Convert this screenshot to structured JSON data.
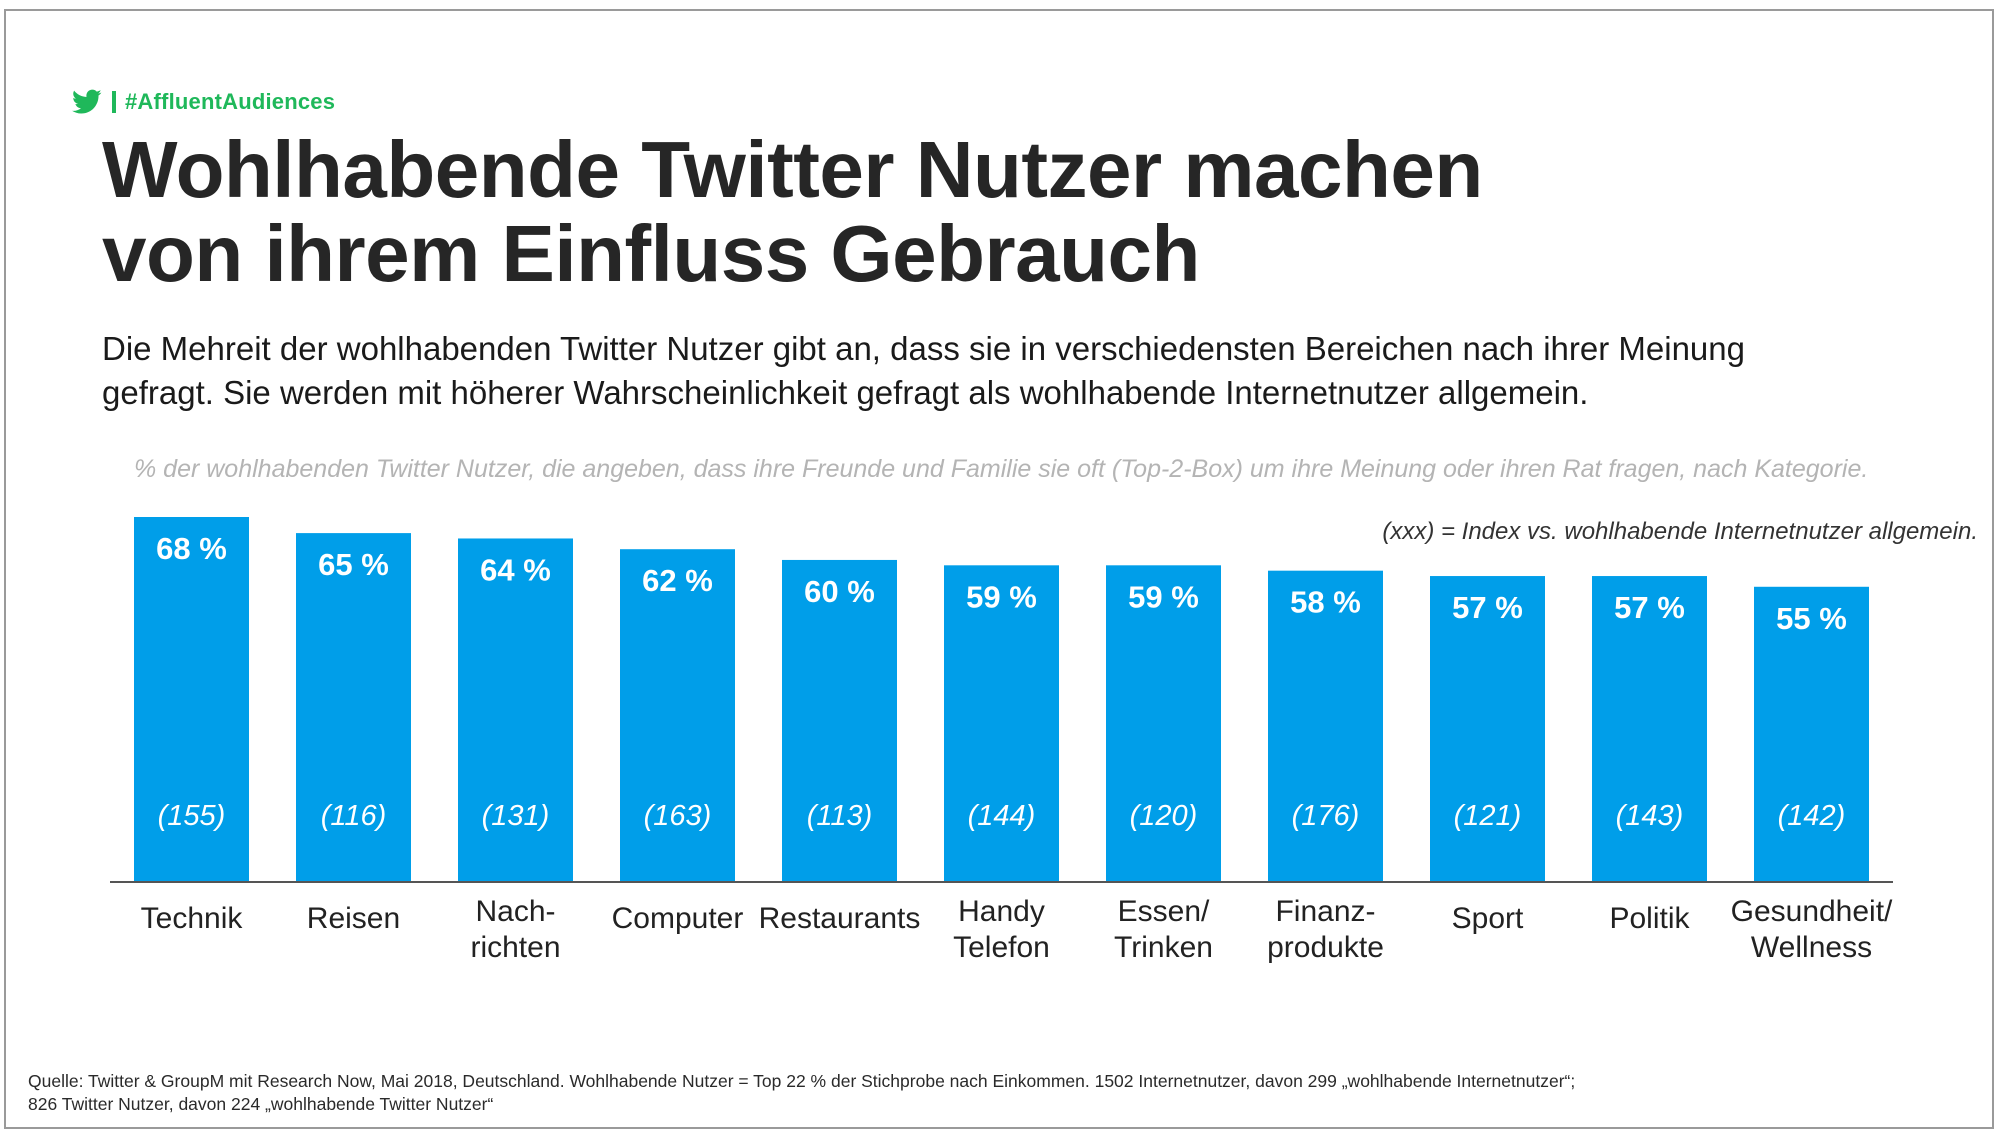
{
  "brand": {
    "hashtag": "#AffluentAudiences",
    "icon": "twitter-bird-icon",
    "color": "#1fb85a"
  },
  "title": {
    "line1": "Wohlhabende Twitter Nutzer machen",
    "line2": "von ihrem Einfluss Gebrauch"
  },
  "subtitle": {
    "line1": "Die Mehreit der wohlhabenden Twitter Nutzer gibt an, dass sie in verschiedensten Bereichen nach ihrer Meinung",
    "line2": "gefragt. Sie werden mit höherer Wahrscheinlichkeit gefragt als wohlhabende Internetnutzer allgemein."
  },
  "chart_note": "% der wohlhabenden Twitter Nutzer, die angeben, dass ihre Freunde und Familie sie oft (Top-2-Box) um ihre Meinung oder ihren Rat fragen, nach Kategorie.",
  "legend": "(xxx) = Index vs. wohlhabende Internetnutzer allgemein.",
  "chart_data": {
    "type": "bar",
    "title": "% der wohlhabenden Twitter Nutzer, die angeben, dass ihre Freunde und Familie sie oft (Top-2-Box) um ihre Meinung oder ihren Rat fragen, nach Kategorie.",
    "categories": [
      [
        "Technik"
      ],
      [
        "Reisen"
      ],
      [
        "Nach-",
        "richten"
      ],
      [
        "Computer"
      ],
      [
        "Restaurants"
      ],
      [
        "Handy",
        "Telefon"
      ],
      [
        "Essen/",
        "Trinken"
      ],
      [
        "Finanz-",
        "produkte"
      ],
      [
        "Sport"
      ],
      [
        "Politik"
      ],
      [
        "Gesundheit/",
        "Wellness"
      ]
    ],
    "values": [
      68,
      65,
      64,
      62,
      60,
      59,
      59,
      58,
      57,
      57,
      55
    ],
    "value_labels": [
      "68 %",
      "65 %",
      "64 %",
      "62 %",
      "60 %",
      "59 %",
      "59 %",
      "58 %",
      "57 %",
      "57 %",
      "55 %"
    ],
    "index_values": [
      155,
      116,
      131,
      163,
      113,
      144,
      120,
      176,
      121,
      143,
      142
    ],
    "index_labels": [
      "(155)",
      "(116)",
      "(131)",
      "(163)",
      "(113)",
      "(144)",
      "(120)",
      "(176)",
      "(121)",
      "(143)",
      "(142)"
    ],
    "xlabel": "",
    "ylabel": "",
    "ylim": [
      0,
      68
    ],
    "grid": false,
    "bar_color": "#009ee9"
  },
  "source": {
    "line1": "Quelle: Twitter & GroupM mit Research Now, Mai 2018, Deutschland. Wohlhabende Nutzer = Top 22 % der Stichprobe nach Einkommen. 1502 Internetnutzer, davon 299 „wohlhabende Internetnutzer“;",
    "line2": "826 Twitter Nutzer, davon 224 „wohlhabende Twitter Nutzer“"
  }
}
